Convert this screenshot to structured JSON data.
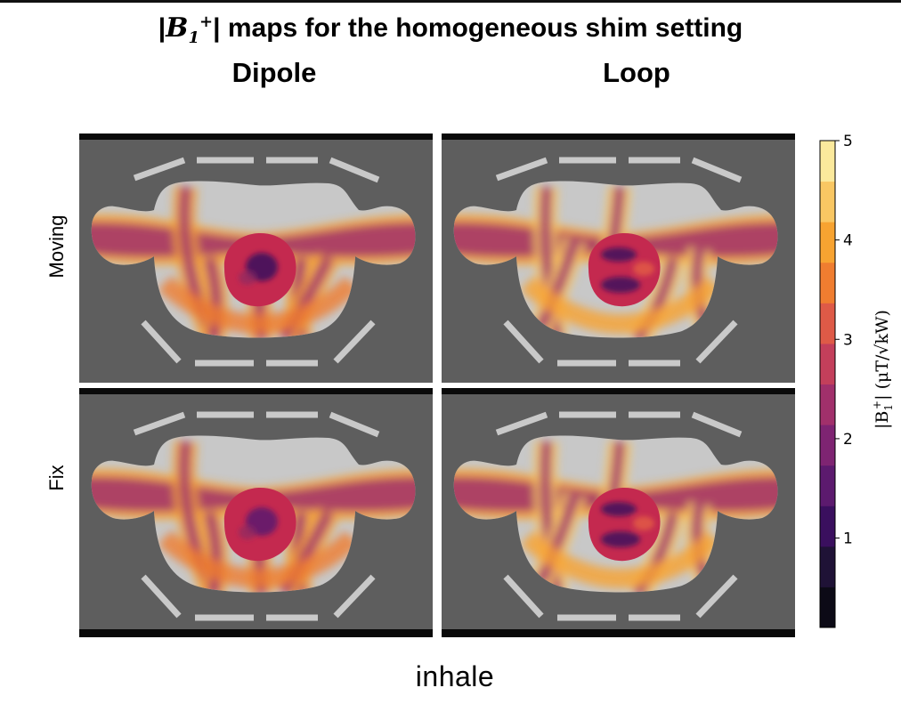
{
  "title": {
    "prefix": "|",
    "symbol": "B",
    "sub": "1",
    "sup": "+",
    "suffix": "| maps for the homogeneous shim setting"
  },
  "column_titles": [
    "Dipole",
    "Loop"
  ],
  "row_labels": [
    "Moving",
    "Fix"
  ],
  "xlabel": "inhale",
  "colorbar": {
    "label": "|B1+| (μT/√kW)",
    "label_tex": {
      "a": "|B",
      "sub": "1",
      "sup": "+",
      "b": "| (μT/√kW)"
    },
    "min": 0,
    "max": 5,
    "ticks": [
      "1",
      "2",
      "3",
      "4",
      "5"
    ],
    "colormap": "inferno",
    "colors": [
      "#0c0a16",
      "#1f1236",
      "#3a0f5e",
      "#5c1a6e",
      "#7e2472",
      "#a1306b",
      "#c33f5b",
      "#de5a47",
      "#ef7d30",
      "#f7a331",
      "#f9c763",
      "#fbe99c"
    ]
  },
  "chart_data": {
    "type": "heatmap",
    "title": "|B1+| maps for the homogeneous shim setting",
    "xlabel": "inhale",
    "ylabel": "",
    "colorbar_range": [
      0,
      5
    ],
    "columns": [
      "Dipole",
      "Loop"
    ],
    "rows": [
      "Moving",
      "Fix"
    ],
    "panels": [
      {
        "row": "Moving",
        "column": "Dipole",
        "heart_peak": 1.2,
        "torso_mean": 2.2
      },
      {
        "row": "Moving",
        "column": "Loop",
        "heart_peak": 3.0,
        "torso_mean": 2.4
      },
      {
        "row": "Fix",
        "column": "Dipole",
        "heart_peak": 1.3,
        "torso_mean": 2.2
      },
      {
        "row": "Fix",
        "column": "Loop",
        "heart_peak": 3.0,
        "torso_mean": 2.4
      }
    ]
  }
}
